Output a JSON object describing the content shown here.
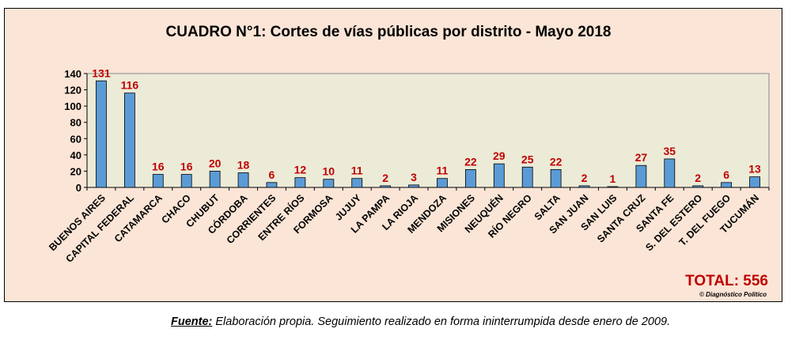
{
  "chart_data": {
    "type": "bar",
    "title": "CUADRO N°1: Cortes de vías públicas por distrito - Mayo 2018",
    "categories": [
      "BUENOS AIRES",
      "CAPITAL FEDERAL",
      "CATAMARCA",
      "CHACO",
      "CHUBUT",
      "CÓRDOBA",
      "CORRIENTES",
      "ENTRE RÍOS",
      "FORMOSA",
      "JUJUY",
      "LA PAMPA",
      "LA RIOJA",
      "MENDOZA",
      "MISIONES",
      "NEUQUÉN",
      "RÍO NEGRO",
      "SALTA",
      "SAN JUAN",
      "SAN LUIS",
      "SANTA CRUZ",
      "SANTA FE",
      "S. DEL ESTERO",
      "T. DEL FUEGO",
      "TUCUMÁN"
    ],
    "values": [
      131,
      116,
      16,
      16,
      20,
      18,
      6,
      12,
      10,
      11,
      2,
      3,
      11,
      22,
      29,
      25,
      22,
      2,
      1,
      27,
      35,
      2,
      6,
      13
    ],
    "ylim": [
      0,
      140
    ],
    "yticks": [
      0,
      20,
      40,
      60,
      80,
      100,
      120,
      140
    ],
    "xlabel": "",
    "ylabel": "",
    "grid": false,
    "total_label": "TOTAL: 556",
    "copyright": "© Diagnóstico Político",
    "colors": {
      "bar": "#5b9bd5",
      "plot_bg": "#ebebd7",
      "labels": "#c00000",
      "frame_bg": "#fbe5d6"
    }
  },
  "source": {
    "label": "Fuente:",
    "text": " Elaboración propia. Seguimiento realizado en forma ininterrumpida desde enero de 2009."
  }
}
